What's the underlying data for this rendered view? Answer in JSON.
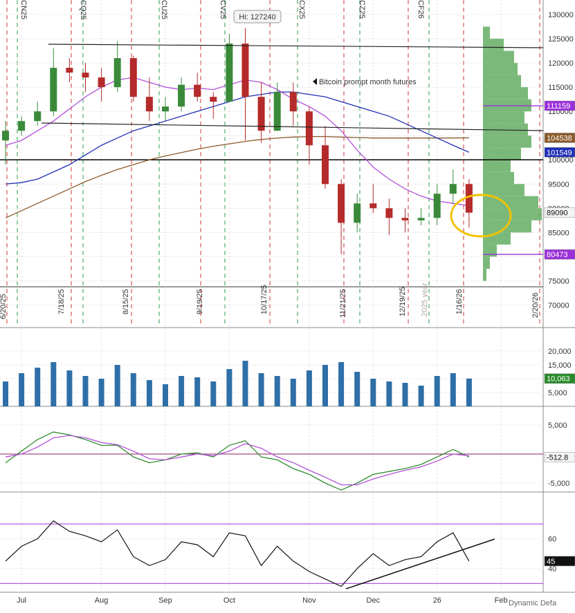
{
  "chart_data": [
    {
      "type": "candlestick",
      "categories": [
        null,
        "Jul",
        null,
        null,
        null,
        null,
        "Aug",
        null,
        null,
        null,
        "Sep",
        null,
        null,
        null,
        "Oct",
        null,
        null,
        null,
        null,
        "Nov",
        null,
        null,
        null,
        "Dec",
        null,
        null,
        null,
        "26",
        null,
        null,
        null,
        "Feb",
        null,
        null
      ],
      "open": [
        104000,
        106000,
        108000,
        110000,
        119000,
        118000,
        117000,
        115000,
        121000,
        113000,
        110000,
        111000,
        115500,
        113000,
        112000,
        124000,
        113000,
        106000,
        114000,
        110000,
        103000,
        95000,
        87000,
        91000,
        90000,
        88000,
        87500,
        88000,
        93000,
        95000,
        null,
        null,
        null,
        null
      ],
      "high": [
        108000,
        109000,
        112000,
        123000,
        121000,
        120000,
        119000,
        124500,
        121500,
        117000,
        113000,
        117000,
        118000,
        114000,
        126000,
        127240,
        116000,
        116000,
        116000,
        111000,
        107000,
        96000,
        93000,
        95000,
        92000,
        90000,
        90000,
        95000,
        98000,
        96000,
        null,
        null,
        null,
        null
      ],
      "low": [
        99000,
        105000,
        107000,
        109000,
        116000,
        114000,
        112000,
        114000,
        112000,
        108000,
        108000,
        110000,
        112000,
        108500,
        112000,
        104000,
        103500,
        106000,
        107000,
        99000,
        94000,
        80473,
        85000,
        89000,
        84500,
        85000,
        86500,
        86500,
        91000,
        86000,
        null,
        null,
        null,
        null
      ],
      "close": [
        106000,
        108000,
        110000,
        119000,
        118000,
        117000,
        115000,
        121000,
        113000,
        110000,
        111000,
        115500,
        113000,
        112000,
        124000,
        113000,
        106000,
        114000,
        110000,
        103000,
        95000,
        87000,
        91000,
        90000,
        88000,
        87500,
        88000,
        93000,
        95000,
        89090,
        null,
        null,
        null,
        null
      ],
      "up_color": "#3a8a3a",
      "down_color": "#b52a2a",
      "series": [
        {
          "name": "200-day",
          "color": "#8b5a2b",
          "values": [
            88000,
            89500,
            91000,
            92500,
            94000,
            95500,
            96800,
            98000,
            99000,
            100000,
            100800,
            101500,
            102200,
            102800,
            103300,
            103800,
            104200,
            104500,
            104700,
            104800,
            104800,
            104700,
            104600,
            104500,
            104500,
            104500,
            104500,
            104500,
            104500,
            104538,
            null,
            null,
            null,
            null
          ]
        },
        {
          "name": "100-day",
          "color": "#1f2fb5",
          "values": [
            95000,
            95300,
            96000,
            97500,
            99000,
            101000,
            103000,
            104500,
            106000,
            107000,
            108000,
            109000,
            110000,
            111000,
            112000,
            113000,
            113500,
            114000,
            114000,
            113500,
            113000,
            112000,
            111000,
            110000,
            109000,
            107500,
            106000,
            104500,
            103000,
            101549,
            null,
            null,
            null,
            null
          ]
        },
        {
          "name": "50-day",
          "color": "#b04fd8",
          "values": [
            103000,
            104000,
            106000,
            108000,
            110500,
            113000,
            115000,
            116500,
            117000,
            116000,
            115000,
            114500,
            114800,
            114500,
            115500,
            116500,
            116000,
            114500,
            112500,
            111000,
            109000,
            106000,
            102000,
            98500,
            96000,
            94000,
            92500,
            91500,
            91000,
            90500,
            null,
            null,
            null,
            null
          ]
        }
      ],
      "levels": [
        {
          "value": 111159,
          "color": "#9b30d9"
        },
        {
          "value": 80473,
          "color": "#9b30d9"
        }
      ],
      "reference_line": 100000,
      "ylim": [
        65500,
        133000
      ],
      "yticks": [
        70000,
        75000,
        80000,
        85000,
        90000,
        95000,
        100000,
        105000,
        110000,
        115000,
        120000,
        125000,
        130000
      ],
      "grid": true,
      "volume_profile": {
        "bins": [
          75000,
          77500,
          80000,
          82500,
          85000,
          87500,
          90000,
          92500,
          95000,
          97500,
          100000,
          102500,
          105000,
          107500,
          110000,
          112500,
          115000,
          117500,
          120000,
          122500,
          125000,
          127500
        ],
        "counts": [
          5,
          10,
          20,
          40,
          70,
          85,
          80,
          60,
          45,
          40,
          55,
          70,
          65,
          60,
          70,
          65,
          55,
          50,
          45,
          30,
          10
        ],
        "color": "#5aa85a"
      },
      "annotations": {
        "high": "Hi: 127240",
        "note": "Bitcoin prompt month futures",
        "contracts": [
          "CN25",
          "CQ25",
          "CU25",
          "CV25",
          "CX25",
          "CZ25",
          "CF26"
        ],
        "expiries": [
          "6/20/25",
          "7/18/25",
          "8/15/25",
          "9/19/25",
          "10/17/25",
          "11/21/25",
          "12/19/25",
          "1/16/26",
          "2/20/26"
        ],
        "year": "2025 year",
        "footer": "Dynamic Defa"
      }
    },
    {
      "type": "volume",
      "color": "#2f6fa8",
      "values": [
        9000,
        12000,
        14000,
        16000,
        13000,
        11000,
        10000,
        15000,
        12000,
        9500,
        8000,
        11000,
        10500,
        9000,
        13500,
        16500,
        12000,
        11000,
        10000,
        13000,
        15000,
        16000,
        12500,
        10000,
        9000,
        8500,
        7500,
        11000,
        12000,
        10063,
        null,
        null,
        null,
        null
      ],
      "value_labels": [
        null,
        null,
        null,
        null,
        null,
        null,
        null,
        null,
        null,
        null,
        null,
        null,
        null,
        null,
        null,
        null,
        null,
        null,
        null,
        null,
        null,
        null,
        null,
        null,
        null,
        null,
        null,
        null,
        null,
        "10,063",
        null,
        null,
        null,
        null
      ],
      "ylim": [
        0,
        27500
      ],
      "yticks": [
        {
          "value": 5000,
          "label": "5,000"
        },
        {
          "value": 10000,
          "label": "10,000"
        },
        {
          "value": 15000,
          "label": "15,000"
        },
        {
          "value": 20000,
          "label": "20,000"
        }
      ]
    },
    {
      "type": "macd",
      "series": [
        {
          "name": "MACD",
          "color": "#2e8b2e",
          "values": [
            -1500,
            500,
            2500,
            3800,
            3300,
            2500,
            1500,
            1500,
            -500,
            -1500,
            -1000,
            0,
            200,
            -500,
            1500,
            2300,
            -500,
            -1000,
            -2500,
            -3500,
            -5000,
            -6200,
            -5000,
            -3500,
            -3000,
            -2500,
            -1800,
            -500,
            800,
            -512.8,
            null,
            null,
            null,
            null
          ]
        },
        {
          "name": "Signal",
          "color": "#b04fd8",
          "values": [
            -500,
            0,
            1200,
            2800,
            3200,
            2800,
            2000,
            1600,
            500,
            -800,
            -1000,
            -500,
            0,
            -300,
            500,
            1800,
            1000,
            -500,
            -1500,
            -2800,
            -4000,
            -5300,
            -5300,
            -4300,
            -3500,
            -2800,
            -2200,
            -1200,
            0,
            -300,
            null,
            null,
            null,
            null
          ]
        }
      ],
      "ylim": [
        -6550,
        7980
      ],
      "yticks": [
        {
          "value": -5000,
          "label": "-5,000"
        },
        {
          "value": 5000,
          "label": "5,000"
        }
      ]
    },
    {
      "type": "rsi",
      "color": "#111111",
      "values": [
        45,
        55,
        60,
        72,
        65,
        62,
        58,
        66,
        48,
        42,
        46,
        58,
        56,
        48,
        64,
        62,
        42,
        55,
        45,
        38,
        33,
        28,
        40,
        50,
        42,
        46,
        48,
        58,
        64,
        45,
        null,
        null,
        null,
        null
      ],
      "bands": [
        70,
        30
      ],
      "band_color": "#9b30d9",
      "ylim": [
        25,
        90
      ],
      "yticks": [
        40,
        60
      ]
    }
  ]
}
